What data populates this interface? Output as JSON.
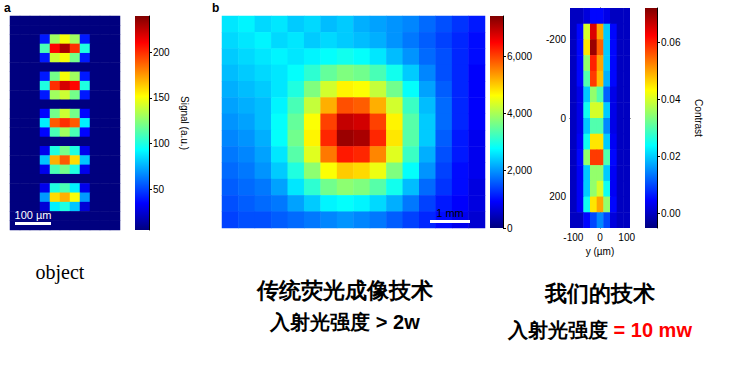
{
  "chart_data": [
    {
      "type": "heatmap",
      "panel": "a",
      "scale_bar": "100 µm",
      "tick_labels": false,
      "cells": [
        [
          5,
          5,
          5,
          5,
          5,
          5,
          5,
          5,
          5,
          5,
          5
        ],
        [
          5,
          5,
          5,
          5,
          5,
          5,
          5,
          5,
          5,
          5,
          5
        ],
        [
          5,
          5,
          5,
          40,
          130,
          150,
          130,
          40,
          5,
          5,
          5
        ],
        [
          5,
          5,
          5,
          110,
          210,
          230,
          200,
          100,
          5,
          5,
          5
        ],
        [
          5,
          5,
          5,
          40,
          140,
          150,
          120,
          40,
          5,
          5,
          5
        ],
        [
          5,
          5,
          5,
          5,
          5,
          5,
          5,
          5,
          5,
          5,
          5
        ],
        [
          5,
          5,
          5,
          40,
          120,
          150,
          130,
          40,
          5,
          5,
          5
        ],
        [
          5,
          5,
          5,
          100,
          200,
          220,
          210,
          100,
          5,
          5,
          5
        ],
        [
          5,
          5,
          5,
          40,
          130,
          140,
          120,
          40,
          5,
          5,
          5
        ],
        [
          5,
          5,
          5,
          5,
          5,
          5,
          5,
          5,
          5,
          5,
          5
        ],
        [
          5,
          5,
          5,
          35,
          120,
          140,
          120,
          35,
          5,
          5,
          5
        ],
        [
          5,
          5,
          5,
          90,
          190,
          200,
          190,
          90,
          5,
          5,
          5
        ],
        [
          5,
          5,
          5,
          35,
          110,
          130,
          110,
          35,
          5,
          5,
          5
        ],
        [
          5,
          5,
          5,
          5,
          5,
          5,
          5,
          5,
          5,
          5,
          5
        ],
        [
          5,
          5,
          5,
          30,
          100,
          120,
          100,
          30,
          5,
          5,
          5
        ],
        [
          5,
          5,
          5,
          80,
          170,
          190,
          160,
          80,
          5,
          5,
          5
        ],
        [
          5,
          5,
          5,
          30,
          110,
          120,
          100,
          30,
          5,
          5,
          5
        ],
        [
          5,
          5,
          5,
          5,
          5,
          5,
          5,
          5,
          5,
          5,
          5
        ],
        [
          5,
          5,
          5,
          30,
          100,
          110,
          90,
          30,
          5,
          5,
          5
        ],
        [
          5,
          5,
          5,
          70,
          160,
          170,
          150,
          70,
          5,
          5,
          5
        ],
        [
          5,
          5,
          5,
          25,
          90,
          100,
          80,
          25,
          5,
          5,
          5
        ],
        [
          5,
          5,
          5,
          5,
          5,
          5,
          5,
          5,
          5,
          5,
          5
        ],
        [
          5,
          5,
          5,
          5,
          5,
          5,
          5,
          5,
          5,
          5,
          5
        ]
      ],
      "colorbar": {
        "range": [
          5,
          240
        ],
        "ticks": [
          50,
          100,
          150,
          200
        ],
        "label": "Signal (a.u.)"
      },
      "caption": [
        [
          {
            "text": "object",
            "color": "#000000"
          }
        ]
      ]
    },
    {
      "type": "heatmap",
      "panel": "b",
      "scale_bar": "1 mm",
      "tick_labels": false,
      "cells": [
        [
          2600,
          2700,
          2500,
          2600,
          2400,
          2500,
          2300,
          2400,
          2200,
          2100,
          2000,
          1900,
          1700,
          1500,
          1300,
          1100
        ],
        [
          2500,
          2600,
          2700,
          2500,
          2600,
          2400,
          2500,
          2400,
          2300,
          2200,
          2000,
          1800,
          1600,
          1400,
          1200,
          1000
        ],
        [
          2400,
          2500,
          2600,
          2700,
          2600,
          2700,
          2800,
          2900,
          2800,
          2600,
          2300,
          2000,
          1700,
          1500,
          1200,
          1000
        ],
        [
          2300,
          2400,
          2500,
          2600,
          2800,
          3100,
          3500,
          3700,
          3600,
          3300,
          2900,
          2400,
          1900,
          1500,
          1200,
          900
        ],
        [
          2200,
          2300,
          2400,
          2600,
          3000,
          3700,
          4300,
          4700,
          4600,
          4200,
          3600,
          2800,
          2100,
          1600,
          1200,
          900
        ],
        [
          2100,
          2200,
          2300,
          2700,
          3300,
          4200,
          5200,
          5900,
          5800,
          5200,
          4300,
          3200,
          2300,
          1700,
          1200,
          900
        ],
        [
          2000,
          2100,
          2300,
          2800,
          3500,
          4600,
          6000,
          6900,
          6800,
          6000,
          4700,
          3400,
          2400,
          1700,
          1200,
          900
        ],
        [
          1900,
          2000,
          2200,
          2800,
          3600,
          4700,
          6200,
          7200,
          7100,
          6200,
          4800,
          3400,
          2400,
          1600,
          1100,
          800
        ],
        [
          1800,
          1900,
          2100,
          2600,
          3400,
          4400,
          5600,
          6300,
          6200,
          5500,
          4400,
          3200,
          2200,
          1500,
          1100,
          800
        ],
        [
          1700,
          1800,
          2000,
          2400,
          3000,
          3800,
          4600,
          5000,
          4900,
          4500,
          3700,
          2800,
          2000,
          1400,
          1000,
          800
        ],
        [
          1600,
          1700,
          1800,
          2100,
          2600,
          3100,
          3600,
          3800,
          3700,
          3400,
          2900,
          2300,
          1700,
          1300,
          1000,
          700
        ],
        [
          1500,
          1600,
          1700,
          1800,
          2100,
          2400,
          2700,
          2800,
          2700,
          2500,
          2200,
          1800,
          1400,
          1100,
          900,
          700
        ],
        [
          1400,
          1500,
          1500,
          1600,
          1700,
          1800,
          1900,
          2000,
          1900,
          1800,
          1600,
          1400,
          1200,
          1000,
          800,
          600
        ]
      ],
      "colorbar": {
        "range": [
          0,
          7400
        ],
        "ticks": [
          0,
          {
            "value": 2000,
            "label": "2,000"
          },
          {
            "value": 4000,
            "label": "4,000"
          },
          {
            "value": 6000,
            "label": "6,000"
          }
        ]
      },
      "caption": [
        [
          {
            "text": "传统荧光成像技术",
            "color": "#000000"
          }
        ],
        [
          {
            "text": "入射光强度 > 2w",
            "color": "#000000"
          }
        ]
      ]
    },
    {
      "type": "heatmap",
      "x": [
        -100,
        -75,
        -50,
        -25,
        0,
        25,
        50,
        75,
        100
      ],
      "y": [
        -260,
        -220,
        -180,
        -140,
        -100,
        -60,
        -20,
        20,
        60,
        100,
        140,
        180,
        220,
        260
      ],
      "cells": [
        [
          0,
          0,
          0.002,
          0.005,
          0.005,
          0.003,
          0,
          0,
          0
        ],
        [
          0,
          0.005,
          0.04,
          0.065,
          0.05,
          0.02,
          0.005,
          0,
          0
        ],
        [
          0,
          0.005,
          0.045,
          0.07,
          0.055,
          0.02,
          0.005,
          0,
          0
        ],
        [
          0,
          0.005,
          0.035,
          0.06,
          0.05,
          0.02,
          0.005,
          0,
          0
        ],
        [
          0,
          0.005,
          0.03,
          0.058,
          0.048,
          0.018,
          0.005,
          0,
          0
        ],
        [
          0,
          0.003,
          0.02,
          0.035,
          0.03,
          0.012,
          0.003,
          0,
          0
        ],
        [
          0,
          0.003,
          0.025,
          0.04,
          0.04,
          0.02,
          0.003,
          0,
          0
        ],
        [
          0,
          0.003,
          0.02,
          0.03,
          0.03,
          0.015,
          0.003,
          0,
          0
        ],
        [
          0,
          0.004,
          0.025,
          0.045,
          0.045,
          0.02,
          0.004,
          0,
          0
        ],
        [
          0,
          0.005,
          0.035,
          0.058,
          0.058,
          0.03,
          0.005,
          0,
          0
        ],
        [
          0,
          0.004,
          0.02,
          0.035,
          0.035,
          0.02,
          0.004,
          0,
          0
        ],
        [
          0,
          0.004,
          0.02,
          0.035,
          0.04,
          0.025,
          0.004,
          0,
          0
        ],
        [
          0,
          0.004,
          0.025,
          0.045,
          0.05,
          0.035,
          0.005,
          0,
          0
        ],
        [
          0,
          0,
          0.005,
          0.01,
          0.015,
          0.01,
          0.002,
          0,
          0
        ]
      ],
      "xlim": [
        -112.5,
        112.5
      ],
      "xticks": [
        -100,
        0,
        100
      ],
      "xlabel": "y (µm)",
      "ylim": [
        -280,
        280
      ],
      "yticks": [
        -200,
        0,
        200
      ],
      "colorbar": {
        "range": [
          -0.005,
          0.072
        ],
        "ticks": [
          {
            "value": 0,
            "label": "0.00"
          },
          {
            "value": 0.02,
            "label": "0.02"
          },
          {
            "value": 0.04,
            "label": "0.04"
          },
          {
            "value": 0.06,
            "label": "0.06"
          }
        ],
        "label": "Contrast"
      },
      "caption": [
        [
          {
            "text": "我们的技术",
            "color": "#000000"
          }
        ],
        [
          {
            "text": "入射光强度 ",
            "color": "#000000"
          },
          {
            "text": "= 10 mw",
            "color": "#ff0000"
          }
        ]
      ]
    }
  ]
}
